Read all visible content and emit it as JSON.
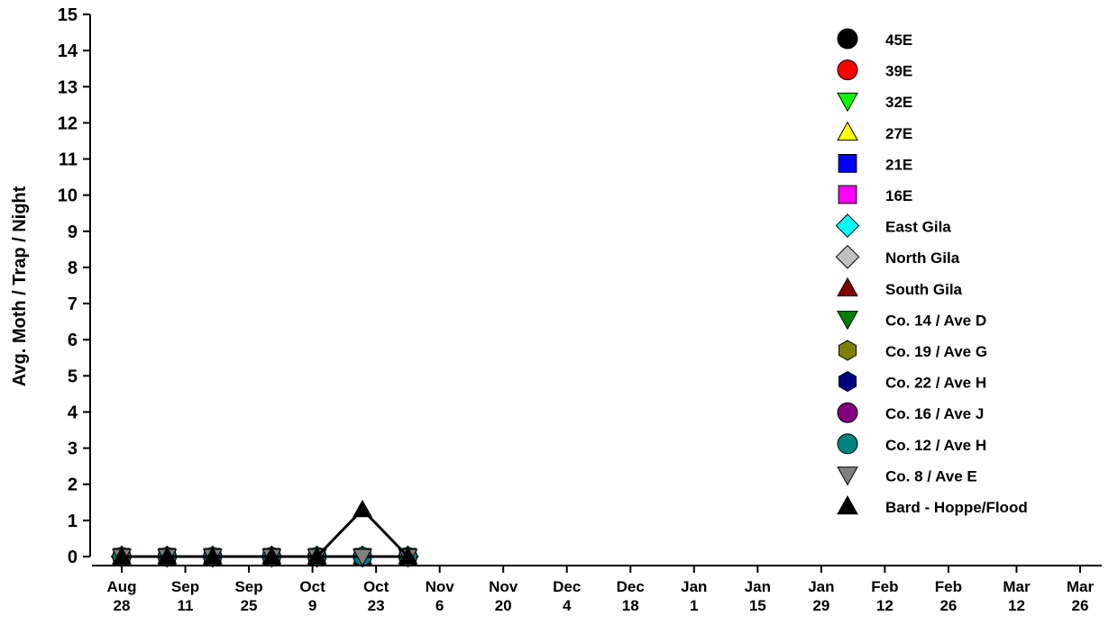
{
  "chart_data": {
    "type": "line",
    "title": "",
    "xlabel": "",
    "ylabel": "Avg. Moth / Trap / Night",
    "ylim": [
      0,
      15
    ],
    "yticks": [
      "0",
      "1",
      "2",
      "3",
      "4",
      "5",
      "6",
      "7",
      "8",
      "9",
      "10",
      "11",
      "12",
      "13",
      "14",
      "15"
    ],
    "x_ticks": [
      {
        "month": "Aug",
        "day": "28",
        "date": "2023-08-28"
      },
      {
        "month": "Sep",
        "day": "11",
        "date": "2023-09-11"
      },
      {
        "month": "Sep",
        "day": "25",
        "date": "2023-09-25"
      },
      {
        "month": "Oct",
        "day": "9",
        "date": "2023-10-09"
      },
      {
        "month": "Oct",
        "day": "23",
        "date": "2023-10-23"
      },
      {
        "month": "Nov",
        "day": "6",
        "date": "2023-11-06"
      },
      {
        "month": "Nov",
        "day": "20",
        "date": "2023-11-20"
      },
      {
        "month": "Dec",
        "day": "4",
        "date": "2023-12-04"
      },
      {
        "month": "Dec",
        "day": "18",
        "date": "2023-12-18"
      },
      {
        "month": "Jan",
        "day": "1",
        "date": "2024-01-01"
      },
      {
        "month": "Jan",
        "day": "15",
        "date": "2024-01-15"
      },
      {
        "month": "Jan",
        "day": "29",
        "date": "2024-01-29"
      },
      {
        "month": "Feb",
        "day": "12",
        "date": "2024-02-12"
      },
      {
        "month": "Feb",
        "day": "26",
        "date": "2024-02-26"
      },
      {
        "month": "Mar",
        "day": "12",
        "date": "2024-03-12"
      },
      {
        "month": "Mar",
        "day": "26",
        "date": "2024-03-26"
      }
    ],
    "x": [
      "2023-08-28",
      "2023-09-07",
      "2023-09-17",
      "2023-09-30",
      "2023-10-10",
      "2023-10-20",
      "2023-10-30"
    ],
    "legend_position": "top-right",
    "grid": false,
    "series": [
      {
        "name": "45E",
        "marker": "circle",
        "color": "#000000",
        "values": [
          0,
          0,
          0,
          0,
          0,
          0,
          0
        ]
      },
      {
        "name": "39E",
        "marker": "circle",
        "color": "#ff0000",
        "values": [
          0,
          0,
          0,
          0,
          0,
          0,
          0
        ]
      },
      {
        "name": "32E",
        "marker": "triangle-down",
        "color": "#00ff00",
        "values": [
          0,
          0,
          0,
          0,
          0,
          0,
          0
        ]
      },
      {
        "name": "27E",
        "marker": "triangle-up",
        "color": "#ffff00",
        "values": [
          0,
          0,
          0,
          0,
          0,
          0,
          0
        ]
      },
      {
        "name": "21E",
        "marker": "square",
        "color": "#0000ff",
        "values": [
          0,
          0,
          0,
          0,
          0,
          0,
          0
        ]
      },
      {
        "name": "16E",
        "marker": "square",
        "color": "#ff00ff",
        "values": [
          0,
          0,
          0,
          0,
          0,
          0,
          0
        ]
      },
      {
        "name": "East Gila",
        "marker": "diamond",
        "color": "#00ffff",
        "values": [
          0,
          0,
          0,
          0,
          0,
          0,
          0
        ]
      },
      {
        "name": "North Gila",
        "marker": "diamond",
        "color": "#c0c0c0",
        "values": [
          0,
          0,
          0,
          0,
          0,
          0,
          0
        ]
      },
      {
        "name": "South Gila",
        "marker": "triangle-up",
        "color": "#800000",
        "values": [
          0,
          0,
          0,
          0,
          0,
          0,
          0
        ]
      },
      {
        "name": "Co. 14 / Ave D",
        "marker": "triangle-down",
        "color": "#008000",
        "values": [
          0,
          0,
          0,
          0,
          0,
          0,
          0
        ]
      },
      {
        "name": "Co. 19 / Ave G",
        "marker": "hexagon",
        "color": "#808000",
        "values": [
          0,
          0,
          0,
          0,
          0,
          0,
          0
        ]
      },
      {
        "name": "Co. 22 / Ave H",
        "marker": "hexagon",
        "color": "#000080",
        "values": [
          0,
          0,
          0,
          0,
          0,
          0,
          0
        ]
      },
      {
        "name": "Co. 16 / Ave J",
        "marker": "circle",
        "color": "#800080",
        "values": [
          0,
          0,
          0,
          0,
          0,
          0,
          0
        ]
      },
      {
        "name": "Co. 12 / Ave H",
        "marker": "circle",
        "color": "#008080",
        "values": [
          0,
          0,
          0,
          0,
          0,
          0,
          0
        ]
      },
      {
        "name": "Co. 8 / Ave E",
        "marker": "triangle-down",
        "color": "#808080",
        "values": [
          0,
          0,
          0,
          0,
          0,
          0,
          0
        ]
      },
      {
        "name": "Bard - Hoppe/Flood",
        "marker": "triangle-up",
        "color": "#000000",
        "values": [
          0,
          0,
          0,
          0,
          0,
          1.3,
          0
        ]
      }
    ]
  }
}
